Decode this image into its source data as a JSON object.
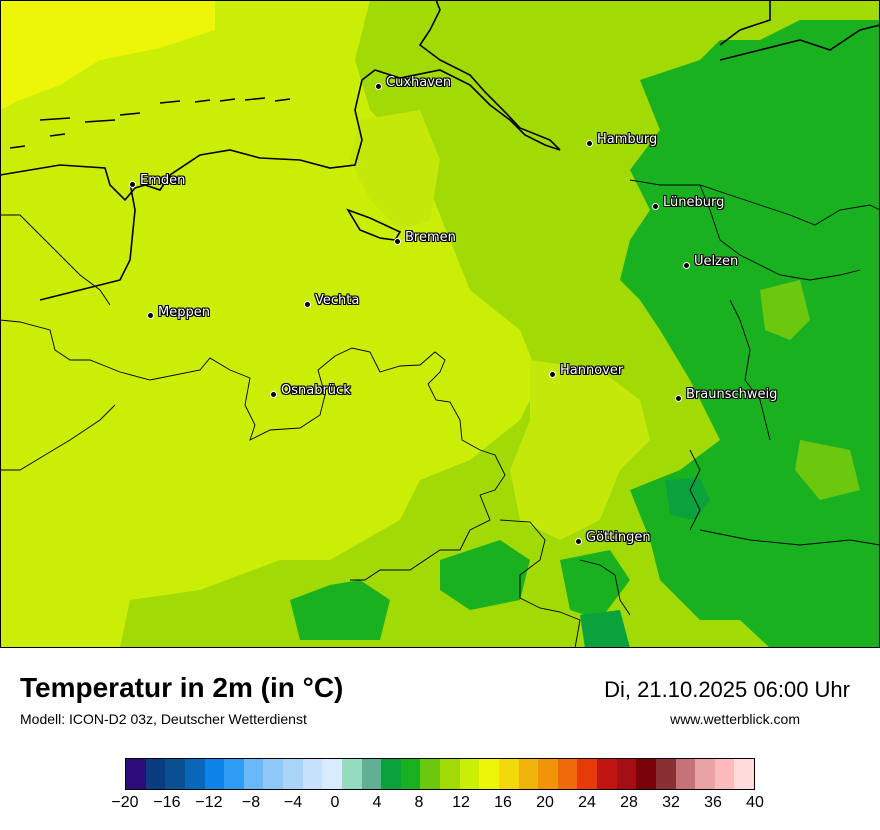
{
  "map": {
    "cities": [
      {
        "name": "Cuxhaven"
      },
      {
        "name": "Hamburg"
      },
      {
        "name": "Emden"
      },
      {
        "name": "Lüneburg"
      },
      {
        "name": "Bremen"
      },
      {
        "name": "Uelzen"
      },
      {
        "name": "Vechta"
      },
      {
        "name": "Meppen"
      },
      {
        "name": "Hannover"
      },
      {
        "name": "Osnabrück"
      },
      {
        "name": "Braunschweig"
      },
      {
        "name": "Göttingen"
      }
    ]
  },
  "footer": {
    "title": "Temperatur in 2m (in °C)",
    "subtitle": "Modell: ICON-D2 03z, Deutscher Wetterdienst",
    "datetime": "Di, 21.10.2025 06:00 Uhr",
    "website": "www.wetterblick.com"
  },
  "legend": {
    "colors": [
      "#2c0c7a",
      "#083d7f",
      "#0b4f93",
      "#0a66b8",
      "#0c84e8",
      "#2e9cf5",
      "#6ab8f7",
      "#8ec8f8",
      "#a8d4fa",
      "#c6e2fb",
      "#d8ebfd",
      "#93dcc0",
      "#62b094",
      "#09a23c",
      "#1ab121",
      "#6cc80f",
      "#a2da05",
      "#cbee06",
      "#eef608",
      "#f3d80a",
      "#f0b40c",
      "#f3930a",
      "#f06a0b",
      "#e83a09",
      "#c01410",
      "#a50e12",
      "#7a0307",
      "#8a3033",
      "#c57278",
      "#eaa3a5",
      "#fcbcbc",
      "#fedcdc"
    ],
    "tick_labels": [
      "−20",
      "−16",
      "−12",
      "−8",
      "−4",
      "0",
      "4",
      "8",
      "12",
      "16",
      "20",
      "24",
      "28",
      "32",
      "36",
      "40"
    ]
  }
}
